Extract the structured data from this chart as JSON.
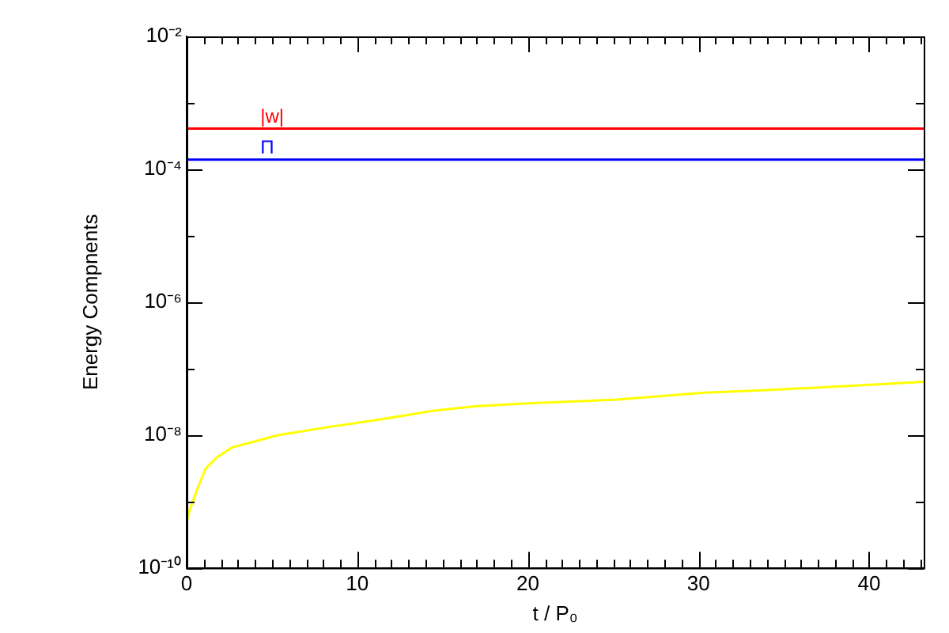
{
  "chart_data": {
    "type": "line",
    "xlabel": "t / P₀",
    "ylabel": "Energy Compnents",
    "log": "y",
    "marker": "none",
    "xlim": [
      0,
      43.2
    ],
    "xticks": [
      0,
      {
        "value": 1,
        "label": null
      },
      {
        "value": 2,
        "label": null
      },
      {
        "value": 3,
        "label": null
      },
      {
        "value": 4,
        "label": null
      },
      {
        "value": 5,
        "label": null
      },
      {
        "value": 6,
        "label": null
      },
      {
        "value": 7,
        "label": null
      },
      {
        "value": 8,
        "label": null
      },
      {
        "value": 9,
        "label": null
      },
      10,
      {
        "value": 11,
        "label": null
      },
      {
        "value": 12,
        "label": null
      },
      {
        "value": 13,
        "label": null
      },
      {
        "value": 14,
        "label": null
      },
      {
        "value": 15,
        "label": null
      },
      {
        "value": 16,
        "label": null
      },
      {
        "value": 17,
        "label": null
      },
      {
        "value": 18,
        "label": null
      },
      {
        "value": 19,
        "label": null
      },
      20,
      {
        "value": 21,
        "label": null
      },
      {
        "value": 22,
        "label": null
      },
      {
        "value": 23,
        "label": null
      },
      {
        "value": 24,
        "label": null
      },
      {
        "value": 25,
        "label": null
      },
      {
        "value": 26,
        "label": null
      },
      {
        "value": 27,
        "label": null
      },
      {
        "value": 28,
        "label": null
      },
      {
        "value": 29,
        "label": null
      },
      30,
      {
        "value": 31,
        "label": null
      },
      {
        "value": 32,
        "label": null
      },
      {
        "value": 33,
        "label": null
      },
      {
        "value": 34,
        "label": null
      },
      {
        "value": 35,
        "label": null
      },
      {
        "value": 36,
        "label": null
      },
      {
        "value": 37,
        "label": null
      },
      {
        "value": 38,
        "label": null
      },
      {
        "value": 39,
        "label": null
      },
      40,
      {
        "value": 41,
        "label": null
      },
      {
        "value": 42,
        "label": null
      },
      {
        "value": 43,
        "label": null
      }
    ],
    "ylim": [
      1e-10,
      0.01
    ],
    "yticks": [
      {
        "value": 1e-10,
        "label": "10⁻¹⁰"
      },
      {
        "value": 1e-09,
        "label": null
      },
      {
        "value": 1e-08,
        "label": "10⁻⁸"
      },
      {
        "value": 1e-07,
        "label": null
      },
      {
        "value": 1e-06,
        "label": "10⁻⁶"
      },
      {
        "value": 1e-05,
        "label": null
      },
      {
        "value": 0.0001,
        "label": "10⁻⁴"
      },
      {
        "value": 0.001,
        "label": null
      },
      {
        "value": 0.01,
        "label": "10⁻²"
      }
    ],
    "series": [
      {
        "name": "|w|",
        "color": "#ff0000",
        "x": [
          0,
          43.2
        ],
        "values": [
          0.00041,
          0.00041
        ]
      },
      {
        "name": "Π",
        "color": "#0000ff",
        "x": [
          0,
          43.2
        ],
        "values": [
          0.00014,
          0.00014
        ]
      },
      {
        "color": "#ffff00",
        "x": [
          0.02,
          0.19,
          0.65,
          1.11,
          1.73,
          2.66,
          3.58,
          5.4,
          8.2,
          11.3,
          14.4,
          16.9,
          20,
          25.2,
          30.2,
          34.5,
          40.1,
          43.2
        ],
        "values": [
          5.2e-10,
          7.6e-10,
          1.6e-09,
          3.1e-09,
          4.5e-09,
          6.5e-09,
          7.5e-09,
          1e-08,
          1.3e-08,
          1.7e-08,
          2.3e-08,
          2.7e-08,
          3e-08,
          3.4e-08,
          4.3e-08,
          4.8e-08,
          5.7e-08,
          6.3e-08
        ]
      }
    ]
  }
}
